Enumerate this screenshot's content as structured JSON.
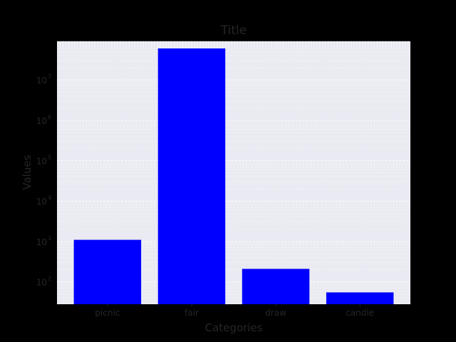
{
  "chart_data": {
    "type": "bar",
    "title": "Title",
    "xlabel": "Categories",
    "ylabel": "Values",
    "yscale": "log",
    "categories": [
      "picnic",
      "fair",
      "draw",
      "candle"
    ],
    "values": [
      1100,
      60000000,
      210,
      55
    ],
    "ylim": [
      28,
      90000000
    ],
    "yticks": [
      {
        "value": 100,
        "base": "10",
        "exp": "2"
      },
      {
        "value": 1000,
        "base": "10",
        "exp": "3"
      },
      {
        "value": 10000,
        "base": "10",
        "exp": "4"
      },
      {
        "value": 100000,
        "base": "10",
        "exp": "5"
      },
      {
        "value": 1000000,
        "base": "10",
        "exp": "6"
      },
      {
        "value": 10000000,
        "base": "10",
        "exp": "7"
      }
    ],
    "grid": true,
    "colors": {
      "bar": "#0000ff",
      "plot_bg": "#eaeaf2",
      "grid": "#ffffff",
      "page_bg": "#000000",
      "text": "#262626"
    }
  }
}
